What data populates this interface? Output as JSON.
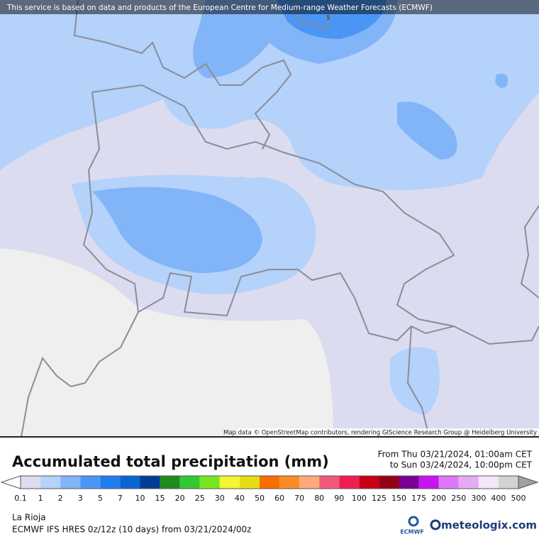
{
  "header": {
    "notice": "This service is based on data and products of the European Centre for Medium-range Weather Forecasts (ECMWF)"
  },
  "map": {
    "attribution": "Map data © OpenStreetMap contributors, rendering GIScience Research Group @ Heidelberg University",
    "labels": [
      "5"
    ]
  },
  "footer": {
    "title": "Accumulated total precipitation (mm)",
    "period_from": "From Thu 03/21/2024, 01:00am CET",
    "period_to": "to Sun 03/24/2024, 10:00pm CET",
    "region": "La Rioja",
    "model": "ECMWF IFS HRES 0z/12z (10 days) from  03/21/2024/00z",
    "ecmwf_logo": "ECMWF",
    "brand": "meteologix.com"
  },
  "legend": {
    "ticks": [
      0.1,
      1,
      2,
      3,
      5,
      7,
      10,
      15,
      20,
      25,
      30,
      40,
      50,
      60,
      70,
      80,
      90,
      100,
      125,
      150,
      175,
      200,
      250,
      300,
      400,
      500
    ],
    "under_color": "#ffffff",
    "over_color": "#a0a0a0",
    "colors": [
      "#dcdcf0",
      "#b4d2fa",
      "#82b4f8",
      "#4b96f5",
      "#1e7ef0",
      "#0a64d2",
      "#003c96",
      "#1e8c1e",
      "#32c832",
      "#78e61e",
      "#f5f532",
      "#e6dc14",
      "#f56e00",
      "#fa8c28",
      "#ffaa78",
      "#f05a78",
      "#f01e50",
      "#c80014",
      "#960014",
      "#780096",
      "#c814f0",
      "#dc78f5",
      "#e6aaf5",
      "#f5e6fa",
      "#d2d2d2"
    ]
  }
}
